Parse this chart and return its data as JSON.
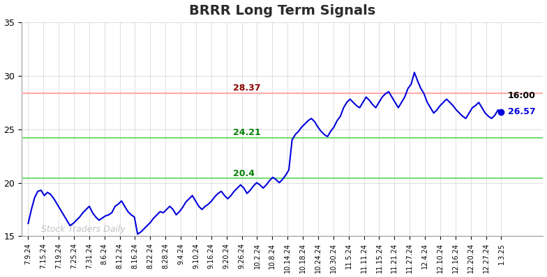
{
  "title": "BRRR Long Term Signals",
  "title_fontsize": 14,
  "title_color": "#2b2b2b",
  "title_fontweight": "bold",
  "background_color": "#ffffff",
  "line_color": "#0000dd",
  "line_width": 1.5,
  "hline_red": 28.37,
  "hline_green1": 24.21,
  "hline_green2": 20.4,
  "hline_red_color": "#ffaaaa",
  "hline_green_color": "#77dd77",
  "hline_linewidth": 1.5,
  "annotation_label": "16:00",
  "annotation_value": "26.57",
  "annotation_black": "#000000",
  "annotation_color": "#0000dd",
  "watermark": "Stock Traders Daily",
  "watermark_color": "#bbbbbb",
  "ylim": [
    15,
    35
  ],
  "yticks": [
    15,
    20,
    25,
    30,
    35
  ],
  "grid_color": "#d0d0d0",
  "x_labels": [
    "7.9.24",
    "7.15.24",
    "7.19.24",
    "7.25.24",
    "7.31.24",
    "8.6.24",
    "8.12.24",
    "8.16.24",
    "8.22.24",
    "8.28.24",
    "9.4.24",
    "9.10.24",
    "9.16.24",
    "9.20.24",
    "9.26.24",
    "10.2.24",
    "10.8.24",
    "10.14.24",
    "10.18.24",
    "10.24.24",
    "10.30.24",
    "11.5.24",
    "11.11.24",
    "11.15.24",
    "11.21.24",
    "11.27.24",
    "12.4.24",
    "12.10.24",
    "12.16.24",
    "12.20.24",
    "12.27.24",
    "1.3.25"
  ],
  "y_values": [
    16.2,
    17.5,
    18.6,
    19.2,
    19.3,
    18.8,
    19.1,
    18.9,
    18.5,
    18.0,
    17.5,
    17.0,
    16.5,
    16.0,
    16.2,
    16.5,
    16.8,
    17.2,
    17.5,
    17.8,
    17.2,
    16.8,
    16.5,
    16.7,
    16.9,
    17.0,
    17.2,
    17.8,
    18.0,
    18.3,
    17.8,
    17.3,
    17.0,
    16.8,
    15.2,
    15.4,
    15.7,
    16.0,
    16.3,
    16.7,
    17.0,
    17.3,
    17.2,
    17.5,
    17.8,
    17.5,
    17.0,
    17.3,
    17.7,
    18.2,
    18.5,
    18.8,
    18.3,
    17.8,
    17.5,
    17.8,
    18.0,
    18.3,
    18.7,
    19.0,
    19.2,
    18.8,
    18.5,
    18.8,
    19.2,
    19.5,
    19.8,
    19.5,
    19.0,
    19.3,
    19.7,
    20.0,
    19.8,
    19.5,
    19.8,
    20.2,
    20.5,
    20.3,
    20.0,
    20.3,
    20.7,
    21.2,
    24.0,
    24.5,
    24.8,
    25.2,
    25.5,
    25.8,
    26.0,
    25.7,
    25.2,
    24.8,
    24.5,
    24.3,
    24.8,
    25.2,
    25.8,
    26.2,
    27.0,
    27.5,
    27.8,
    27.5,
    27.2,
    27.0,
    27.5,
    28.0,
    27.7,
    27.3,
    27.0,
    27.5,
    28.0,
    28.3,
    28.5,
    28.0,
    27.5,
    27.0,
    27.5,
    28.0,
    28.8,
    29.2,
    30.3,
    29.5,
    28.8,
    28.3,
    27.5,
    27.0,
    26.5,
    26.8,
    27.2,
    27.5,
    27.8,
    27.5,
    27.2,
    26.8,
    26.5,
    26.2,
    26.0,
    26.5,
    27.0,
    27.2,
    27.5,
    27.0,
    26.5,
    26.2,
    26.0,
    26.3,
    26.8,
    26.57
  ]
}
